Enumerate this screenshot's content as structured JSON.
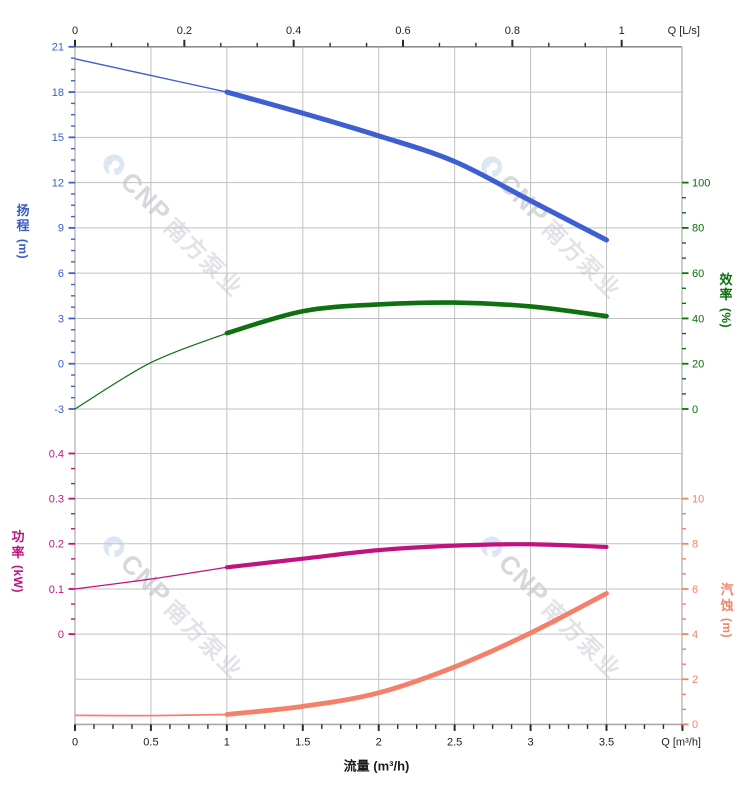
{
  "watermark": {
    "logo_icon": "cnp-ring-logo",
    "brand": "CNP",
    "company": "南方泵业",
    "logo_color": "#dce7f3",
    "brand_color": "#d7d9dd",
    "company_color": "#e2e4e8"
  },
  "axes": {
    "top": {
      "label": "Q [L/s]",
      "tick_labels": [
        "0",
        "0.2",
        "0.4",
        "0.6",
        "0.8",
        "1"
      ],
      "tick_values": [
        0,
        0.2,
        0.4,
        0.6,
        0.8,
        1
      ],
      "minor_divisions": 3,
      "color": "#222222"
    },
    "bottom": {
      "label": "Q [m³/h]",
      "axis_title": "流量 (m³/h)",
      "tick_labels": [
        "0",
        "0.5",
        "1",
        "1.5",
        "2",
        "2.5",
        "3",
        "3.5"
      ],
      "tick_values": [
        0,
        0.5,
        1,
        1.5,
        2,
        2.5,
        3,
        3.5
      ],
      "minor_divisions": 4,
      "range": [
        0,
        4
      ],
      "color": "#222222"
    }
  },
  "chart_data": [
    {
      "id": "head",
      "type": "line",
      "name": "扬程",
      "axis_title": "扬程 (m)",
      "side": "left",
      "band": "top",
      "unit": "m",
      "color": "#3e5fd2",
      "label_color": "#3a5cc8",
      "x": [
        0,
        0.5,
        1,
        1.5,
        2,
        2.5,
        3,
        3.5
      ],
      "values": [
        20.2,
        19.1,
        18.0,
        16.6,
        15.1,
        13.4,
        10.8,
        8.2
      ],
      "tick_labels": [
        "21",
        "18",
        "15",
        "12",
        "9",
        "6",
        "3",
        "0",
        "-3"
      ],
      "tick_values": [
        21,
        18,
        15,
        12,
        9,
        6,
        3,
        0,
        -3
      ],
      "minor_divisions": 4,
      "ylim": [
        -3,
        21
      ],
      "highlight_from_x": 1
    },
    {
      "id": "efficiency",
      "type": "line",
      "name": "效率",
      "axis_title": "效率 (%)",
      "side": "right",
      "band": "top",
      "unit": "%",
      "color": "#0e700e",
      "label_color": "#0a6e0a",
      "x": [
        0,
        0.5,
        1,
        1.5,
        2,
        2.5,
        3,
        3.5
      ],
      "values": [
        0,
        20.5,
        33.5,
        43.2,
        46.2,
        47.0,
        45.3,
        41.0
      ],
      "tick_labels": [
        "100",
        "80",
        "60",
        "40",
        "20",
        "0"
      ],
      "tick_values": [
        100,
        80,
        60,
        40,
        20,
        0
      ],
      "minor_divisions": 3,
      "ylim": [
        0,
        100
      ],
      "highlight_from_x": 1
    },
    {
      "id": "power",
      "type": "line",
      "name": "功率",
      "axis_title": "功率 (kW)",
      "side": "left",
      "band": "bottom",
      "unit": "kW",
      "color": "#c0137f",
      "label_color": "#bd1580",
      "x": [
        0,
        0.5,
        1,
        1.5,
        2,
        2.5,
        3,
        3.5
      ],
      "values": [
        0.1,
        0.122,
        0.148,
        0.167,
        0.186,
        0.196,
        0.199,
        0.193
      ],
      "tick_labels": [
        "0.4",
        "0.3",
        "0.2",
        "0.1",
        "0"
      ],
      "tick_values": [
        0.4,
        0.3,
        0.2,
        0.1,
        0
      ],
      "minor_divisions": 3,
      "ylim": [
        0,
        0.4
      ],
      "highlight_from_x": 1
    },
    {
      "id": "npsh",
      "type": "line",
      "name": "汽蚀",
      "axis_title": "汽蚀 (m)",
      "side": "right",
      "band": "bottom",
      "unit": "m",
      "color": "#f4806a",
      "label_color": "#f4836b",
      "x": [
        0,
        0.5,
        1,
        1.5,
        2,
        2.5,
        3,
        3.5
      ],
      "values": [
        0.4,
        0.39,
        0.44,
        0.8,
        1.4,
        2.55,
        4.05,
        5.8
      ],
      "tick_labels": [
        "10",
        "8",
        "6",
        "4",
        "2",
        "0"
      ],
      "tick_values": [
        10,
        8,
        6,
        4,
        2,
        0
      ],
      "minor_divisions": 3,
      "ylim": [
        0,
        10
      ],
      "highlight_from_x": 1
    }
  ]
}
